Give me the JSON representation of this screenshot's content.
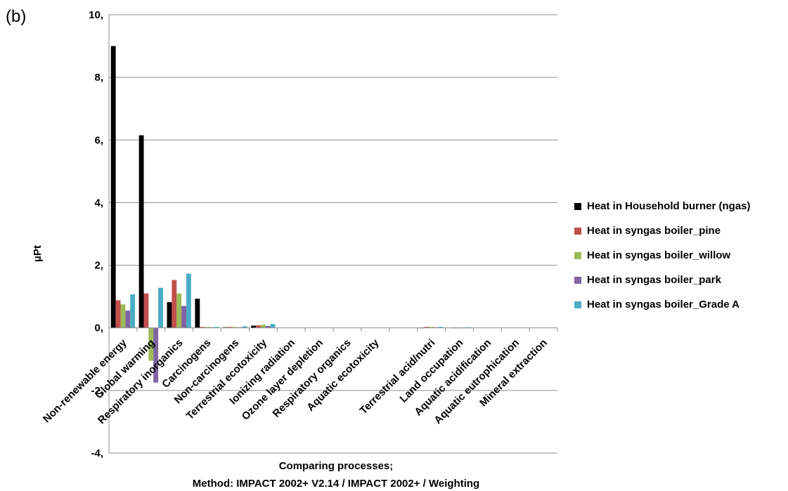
{
  "panel_label": "(b)",
  "chart_data": {
    "type": "bar",
    "title": "",
    "ylabel": "µPt",
    "xlabel_lines": [
      "Comparing processes;",
      "Method: IMPACT 2002+ V2.14 / IMPACT 2002+ / Weighting"
    ],
    "ylim": [
      -4,
      10
    ],
    "yticks": [
      -4,
      -2,
      0,
      2,
      4,
      6,
      8,
      10
    ],
    "ytick_labels": [
      "-4,",
      "-2,",
      "0,",
      "2,",
      "4,",
      "6,",
      "8,",
      "10,"
    ],
    "grid": "horizontal",
    "legend_position": "right",
    "categories": [
      "Non-renewable energy",
      "Global warming",
      "Respiratory inorganics",
      "Carcinogens",
      "Non-carcinogens",
      "Terrestrial ecotoxicity",
      "Ionizing radiation",
      "Ozone layer depletion",
      "Respiratory organics",
      "Aquatic ecotoxicity",
      "",
      "Terrestrial acid/nutri",
      "Land occupation",
      "Aquatic acidification",
      "Aquatic eutrophication",
      "Mineral extraction"
    ],
    "series": [
      {
        "name": "Heat in Household burner (ngas)",
        "color": "#000000",
        "values": [
          9.0,
          6.15,
          0.82,
          0.93,
          0.02,
          0.07,
          0,
          0,
          0,
          0,
          0,
          0.01,
          0,
          0,
          0,
          0
        ]
      },
      {
        "name": "Heat in syngas boiler_pine",
        "color": "#c0504d",
        "values": [
          0.88,
          1.1,
          1.53,
          0.03,
          0.03,
          0.08,
          0,
          0,
          0,
          0,
          0,
          0.03,
          0.01,
          0,
          0,
          0
        ]
      },
      {
        "name": "Heat in syngas boiler_willow",
        "color": "#9bbb59",
        "values": [
          0.75,
          -1.05,
          1.1,
          0.03,
          0.03,
          0.1,
          0,
          0,
          0,
          0,
          0,
          0.03,
          0.01,
          0,
          0,
          0
        ]
      },
      {
        "name": "Heat in syngas boiler_park",
        "color": "#8064a2",
        "values": [
          0.55,
          -1.75,
          0.7,
          0.02,
          0.02,
          0.06,
          0,
          0,
          0,
          0,
          0,
          0.02,
          0.01,
          0,
          0,
          0
        ]
      },
      {
        "name": "Heat in syngas boiler_Grade A",
        "color": "#4bacc6",
        "values": [
          1.07,
          1.28,
          1.73,
          0.03,
          0.05,
          0.12,
          0,
          0,
          0,
          0,
          0,
          0.03,
          0.02,
          0,
          0,
          0
        ]
      }
    ]
  }
}
